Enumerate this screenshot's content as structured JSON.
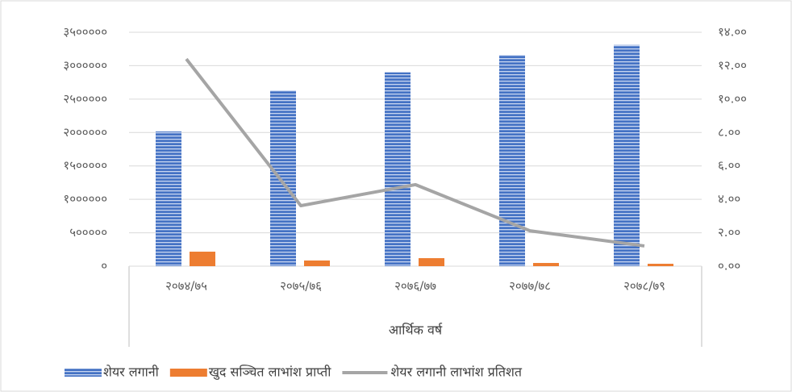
{
  "chart_data": {
    "type": "bar",
    "x_label": "आर्थिक वर्ष",
    "categories": [
      "२०७४/७५",
      "२०७५/७६",
      "२०७६/७७",
      "२०७७/७८",
      "२०७८/७९"
    ],
    "series": [
      {
        "name": "शेयर लगानी",
        "color": "#4472c4",
        "values": [
          2015000,
          2630000,
          2900000,
          3160000,
          3310000
        ]
      },
      {
        "name": "खुद सञ्चित लाभांश प्राप्ती",
        "color": "#ed7d31",
        "values": [
          217000,
          85000,
          120000,
          48000,
          36000
        ]
      },
      {
        "name": "शेयर लगानी लाभांश प्रतिशत",
        "color": "#a5a5a5",
        "type": "line",
        "axis": "y2",
        "values": [
          12.4,
          3.62,
          4.88,
          2.12,
          1.21
        ]
      }
    ],
    "ylim": [
      0,
      3500000
    ],
    "yticks": [
      {
        "value": 0,
        "label": "०"
      },
      {
        "value": 500000,
        "label": "५०००००"
      },
      {
        "value": 1000000,
        "label": "१००००००"
      },
      {
        "value": 1500000,
        "label": "१५०००००"
      },
      {
        "value": 2000000,
        "label": "२००००००"
      },
      {
        "value": 2500000,
        "label": "२५०००००"
      },
      {
        "value": 3000000,
        "label": "३००००००"
      },
      {
        "value": 3500000,
        "label": "३५०००००"
      }
    ],
    "y2lim": [
      0,
      14
    ],
    "y2ticks": [
      {
        "value": 0,
        "label": "०.००"
      },
      {
        "value": 2,
        "label": "२.००"
      },
      {
        "value": 4,
        "label": "४.००"
      },
      {
        "value": 6,
        "label": "६.००"
      },
      {
        "value": 8,
        "label": "८.००"
      },
      {
        "value": 10,
        "label": "१०.००"
      },
      {
        "value": 12,
        "label": "१२.००"
      },
      {
        "value": 14,
        "label": "१४.००"
      }
    ],
    "grid": true
  }
}
